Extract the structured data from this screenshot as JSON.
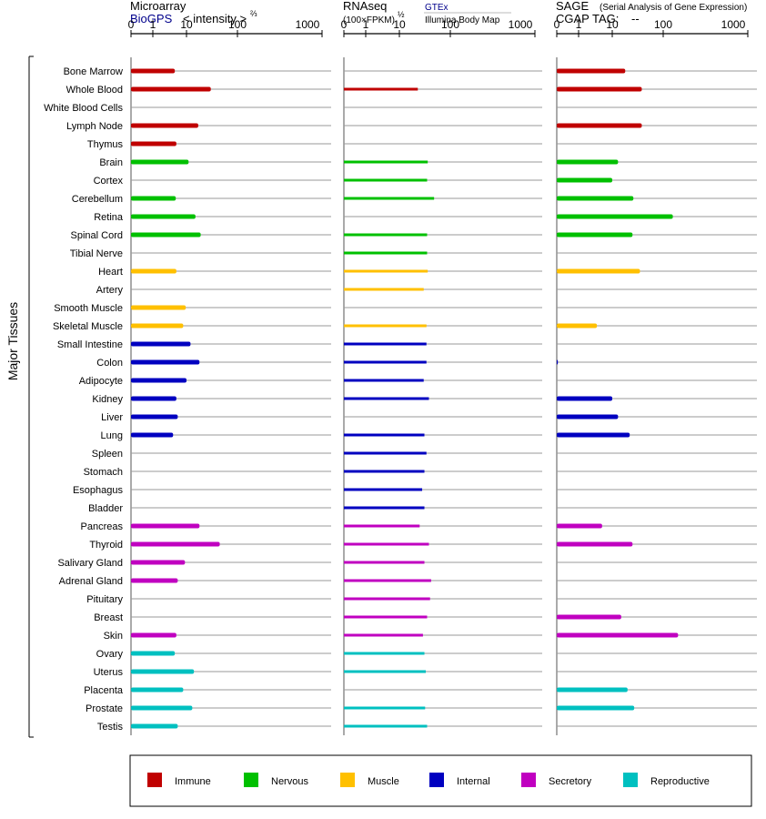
{
  "figure": {
    "side_label": "Major Tissues"
  },
  "panels": [
    {
      "title": "Microarray",
      "subtitle_link": "BioGPS",
      "subtitle_text": "< intensity >",
      "subtitle_exp": "⅔",
      "ticks": [
        "0",
        "1",
        "10",
        "100",
        "1000"
      ]
    },
    {
      "title": "RNAseq",
      "subtitle_text": "(100×FPKM)",
      "subtitle_exp": "½",
      "source_top": "GTEx",
      "source_bottom": "Illumina Body Map",
      "ticks": [
        "0",
        "1",
        "10",
        "100",
        "1000"
      ]
    },
    {
      "title": "SAGE",
      "title_note": "(Serial Analysis of Gene Expression)",
      "cgap_label": "CGAP TAG:",
      "cgap_value": "--",
      "ticks": [
        "0",
        "1",
        "10",
        "100",
        "1000"
      ]
    }
  ],
  "legend": [
    {
      "label": "Immune",
      "color": "#c00000"
    },
    {
      "label": "Nervous",
      "color": "#00c000"
    },
    {
      "label": "Muscle",
      "color": "#ffc000"
    },
    {
      "label": "Internal",
      "color": "#0000c0"
    },
    {
      "label": "Secretory",
      "color": "#c000c0"
    },
    {
      "label": "Reproductive",
      "color": "#00c0c0"
    }
  ],
  "chart_data": {
    "type": "bar",
    "orientation": "horizontal",
    "x_scale": "log",
    "x_range": [
      0,
      1000
    ],
    "x_ticks": [
      0,
      1,
      10,
      100,
      1000
    ],
    "grid": true,
    "legend_position": "bottom",
    "categories": [
      "Bone Marrow",
      "Whole Blood",
      "White Blood Cells",
      "Lymph Node",
      "Thymus",
      "Brain",
      "Cortex",
      "Cerebellum",
      "Retina",
      "Spinal Cord",
      "Tibial Nerve",
      "Heart",
      "Artery",
      "Smooth Muscle",
      "Skeletal Muscle",
      "Small Intestine",
      "Colon",
      "Adipocyte",
      "Kidney",
      "Liver",
      "Lung",
      "Spleen",
      "Stomach",
      "Esophagus",
      "Bladder",
      "Pancreas",
      "Thyroid",
      "Salivary Gland",
      "Adrenal Gland",
      "Pituitary",
      "Breast",
      "Skin",
      "Ovary",
      "Uterus",
      "Placenta",
      "Prostate",
      "Testis"
    ],
    "groups": [
      "Immune",
      "Immune",
      "Immune",
      "Immune",
      "Immune",
      "Nervous",
      "Nervous",
      "Nervous",
      "Nervous",
      "Nervous",
      "Nervous",
      "Muscle",
      "Muscle",
      "Muscle",
      "Muscle",
      "Internal",
      "Internal",
      "Internal",
      "Internal",
      "Internal",
      "Internal",
      "Internal",
      "Internal",
      "Internal",
      "Internal",
      "Secretory",
      "Secretory",
      "Secretory",
      "Secretory",
      "Secretory",
      "Secretory",
      "Secretory",
      "Reproductive",
      "Reproductive",
      "Reproductive",
      "Reproductive",
      "Reproductive"
    ],
    "series": [
      {
        "name": "Microarray",
        "values": [
          4.5,
          30,
          null,
          17,
          5,
          11,
          null,
          4.8,
          15,
          19,
          null,
          5,
          null,
          9.5,
          8,
          12,
          18,
          10,
          5,
          5.5,
          4,
          null,
          null,
          null,
          null,
          18,
          45,
          9,
          5.5,
          null,
          null,
          5,
          4.5,
          14,
          8,
          13,
          5.5
        ]
      },
      {
        "name": "RNAseq",
        "values": [
          null,
          23,
          null,
          null,
          null,
          36,
          35,
          48,
          null,
          35,
          35,
          36,
          30,
          null,
          34,
          34,
          34,
          30,
          38,
          null,
          31,
          34,
          31,
          28,
          31,
          25,
          38,
          31,
          42,
          40,
          35,
          29,
          31,
          33,
          null,
          32,
          35
        ]
      },
      {
        "name": "SAGE",
        "values": [
          18,
          38,
          null,
          38,
          null,
          13,
          10,
          26,
          130,
          25,
          null,
          35,
          null,
          null,
          3.5,
          null,
          0.05,
          null,
          10,
          13,
          22,
          null,
          null,
          null,
          null,
          5,
          25,
          null,
          null,
          null,
          15,
          150,
          null,
          null,
          20,
          27,
          null
        ]
      }
    ]
  }
}
